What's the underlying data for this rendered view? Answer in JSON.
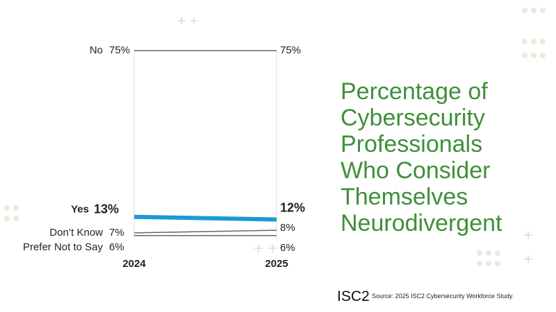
{
  "chart_data": {
    "type": "slope",
    "title": "Percentage of Cybersecurity Professionals Who Consider Themselves Neurodivergent",
    "categories": [
      "2024",
      "2025"
    ],
    "ylim": [
      0,
      75
    ],
    "series": [
      {
        "name": "No",
        "color": "#666666",
        "values": [
          75,
          75
        ],
        "value_labels": [
          "75%",
          "75%"
        ]
      },
      {
        "name": "Yes",
        "color": "#1a9ad6",
        "values": [
          13,
          12
        ],
        "value_labels": [
          "13%",
          "12%"
        ]
      },
      {
        "name": "Don’t Know",
        "color": "#666666",
        "values": [
          7,
          8
        ],
        "value_labels": [
          "7%",
          "8%"
        ]
      },
      {
        "name": "Prefer Not to Say",
        "color": "#666666",
        "values": [
          6,
          6
        ],
        "value_labels": [
          "6%",
          "6%"
        ]
      }
    ],
    "logo": "ISC2",
    "source": "Source: 2025 ISC2 Cybersecurity Workforce Study."
  }
}
